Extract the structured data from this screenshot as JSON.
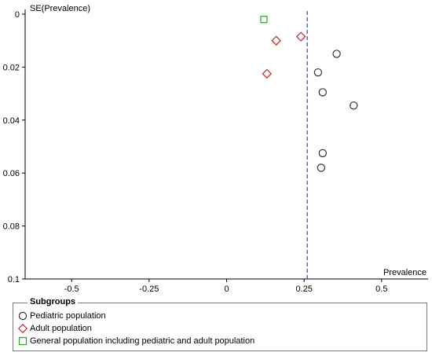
{
  "chart_data": {
    "type": "scatter",
    "title": "",
    "xlabel": "Prevalence",
    "ylabel": "SE(Prevalence)",
    "xlim": [
      -0.65,
      0.65
    ],
    "ylim": [
      0,
      0.1
    ],
    "y_inverted": true,
    "x_ticks": [
      "-0.5",
      "-0.25",
      "0",
      "0.25",
      "0.5"
    ],
    "x_tick_values": [
      -0.5,
      -0.25,
      0,
      0.25,
      0.5
    ],
    "y_ticks": [
      "0",
      "0.02",
      "0.04",
      "0.06",
      "0.08",
      "0.1"
    ],
    "y_tick_values": [
      0,
      0.02,
      0.04,
      0.06,
      0.08,
      0.1
    ],
    "pooled_estimate": 0.26,
    "pooled_line_color": "#3333cc",
    "series": [
      {
        "name": "Pediatric population",
        "marker": "circle",
        "color": "#333333",
        "points": [
          [
            0.355,
            0.015
          ],
          [
            0.295,
            0.022
          ],
          [
            0.31,
            0.0295
          ],
          [
            0.41,
            0.0345
          ],
          [
            0.31,
            0.0525
          ],
          [
            0.305,
            0.058
          ]
        ]
      },
      {
        "name": "Adult population",
        "marker": "diamond",
        "color": "#cc2222",
        "points": [
          [
            0.24,
            0.0085
          ],
          [
            0.16,
            0.01
          ],
          [
            0.13,
            0.0225
          ]
        ]
      },
      {
        "name": "General population including pediatric and adult population",
        "marker": "square",
        "color": "#22aa22",
        "points": [
          [
            0.12,
            0.002
          ]
        ]
      }
    ],
    "legend": {
      "title": "Subgroups",
      "placement": "bottom"
    }
  }
}
